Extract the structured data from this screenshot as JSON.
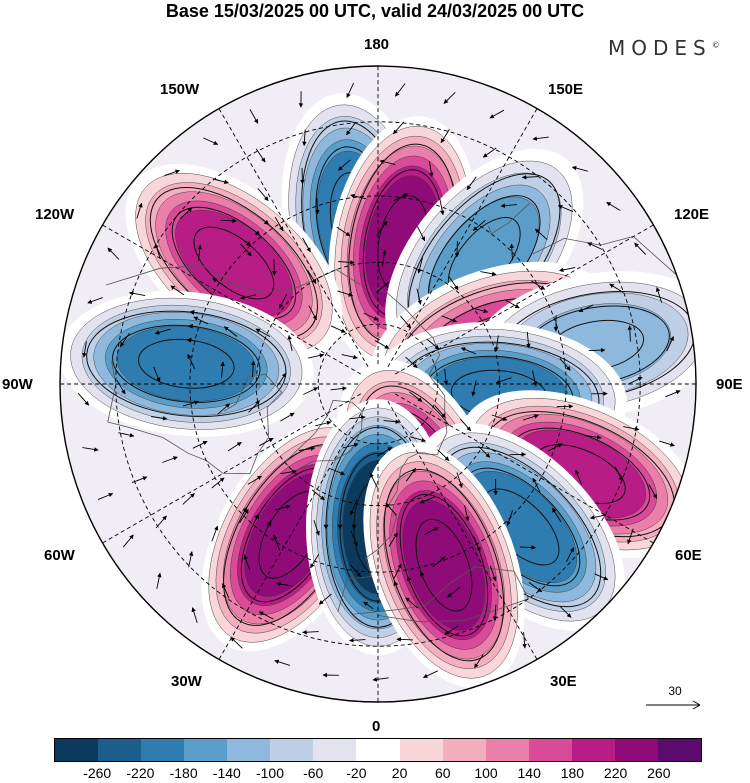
{
  "title": "Base 15/03/2025 00 UTC, valid 24/03/2025 00 UTC",
  "brand": "MODES",
  "brand_mark": "©",
  "longitude_labels": {
    "top": "180",
    "bottom": "0",
    "left": "90W",
    "right": "90E",
    "upper_left_1": "150W",
    "upper_left_2": "120W",
    "upper_right_1": "150E",
    "upper_right_2": "120E",
    "lower_left_1": "60W",
    "lower_left_2": "30W",
    "lower_right_1": "60E",
    "lower_right_2": "30E"
  },
  "reference_vector": {
    "value": "30",
    "icon": "arrow-right-icon"
  },
  "colorbar": {
    "colors": [
      "#0b3a5c",
      "#1c5f8c",
      "#2f7db0",
      "#5a9dc8",
      "#8fb9dc",
      "#bfcfe6",
      "#e3e3f0",
      "#ffffff",
      "#f9d6da",
      "#f3afc0",
      "#ea80a9",
      "#d94a98",
      "#b81d86",
      "#8f0b78",
      "#5b0a6e"
    ],
    "ticks": [
      "-260",
      "-220",
      "-180",
      "-140",
      "-100",
      "-60",
      "-20",
      "20",
      "60",
      "100",
      "140",
      "180",
      "220",
      "260"
    ]
  },
  "anomaly_centers": [
    {
      "kind": "negative",
      "value": -200,
      "lon": -172,
      "lat": 50
    },
    {
      "kind": "positive",
      "value": 220,
      "lon": 170,
      "lat": 55
    },
    {
      "kind": "positive",
      "value": 190,
      "lon": -130,
      "lat": 45
    },
    {
      "kind": "negative",
      "value": -160,
      "lon": 140,
      "lat": 50
    },
    {
      "kind": "negative",
      "value": -170,
      "lon": -96,
      "lat": 44
    },
    {
      "kind": "positive",
      "value": 130,
      "lon": 110,
      "lat": 60
    },
    {
      "kind": "negative",
      "value": -120,
      "lon": 100,
      "lat": 38
    },
    {
      "kind": "negative",
      "value": -180,
      "lon": 85,
      "lat": 60
    },
    {
      "kind": "positive",
      "value": 170,
      "lon": 66,
      "lat": 38
    },
    {
      "kind": "positive",
      "value": 170,
      "lon": 24,
      "lat": 64
    },
    {
      "kind": "negative",
      "value": -170,
      "lon": 45,
      "lat": 42
    },
    {
      "kind": "positive",
      "value": 240,
      "lon": -30,
      "lat": 48
    },
    {
      "kind": "negative",
      "value": -250,
      "lon": 0,
      "lat": 55
    },
    {
      "kind": "positive",
      "value": 230,
      "lon": 20,
      "lat": 44
    }
  ]
}
